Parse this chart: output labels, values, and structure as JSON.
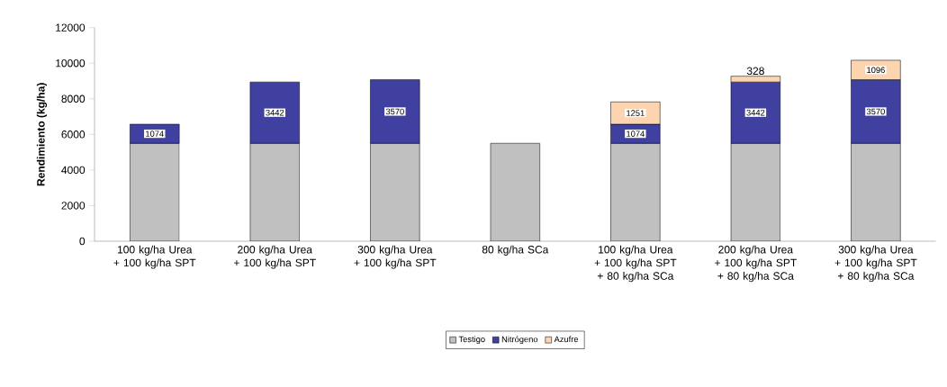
{
  "chart_data": {
    "type": "bar",
    "stacked": true,
    "ylabel": "Rendimiento (kg/ha)",
    "categories": [
      "100 kg/ha Urea + 100 kg/ha SPT",
      "200 kg/ha Urea + 100 kg/ha SPT",
      "300 kg/ha Urea + 100 kg/ha SPT",
      "80 kg/ha SCa",
      "100 kg/ha Urea + 100 kg/ha SPT + 80 kg/ha SCa",
      "200 kg/ha Urea + 100 kg/ha SPT + 80 kg/ha SCa",
      "300 kg/ha Urea + 100 kg/ha SPT + 80 kg/ha SCa"
    ],
    "series": [
      {
        "name": "Testigo",
        "color": "#c0c0c0",
        "values": [
          5500,
          5500,
          5500,
          5500,
          5500,
          5500,
          5500
        ]
      },
      {
        "name": "Nitrógeno",
        "color": "#4040a0",
        "values": [
          1074,
          3442,
          3570,
          null,
          1074,
          3442,
          3570
        ],
        "value_labels": [
          "1074",
          "3442",
          "3570",
          null,
          "1074",
          "3442",
          "3570"
        ]
      },
      {
        "name": "Azufre",
        "color": "#fcd5b0",
        "values": [
          null,
          null,
          null,
          null,
          1251,
          328,
          1096
        ],
        "value_labels": [
          null,
          null,
          null,
          null,
          "1251",
          "328",
          "1096"
        ]
      }
    ],
    "ylim": [
      0,
      12000
    ],
    "yticks": [
      0,
      2000,
      4000,
      6000,
      8000,
      10000,
      12000
    ],
    "legend": "bottom"
  }
}
